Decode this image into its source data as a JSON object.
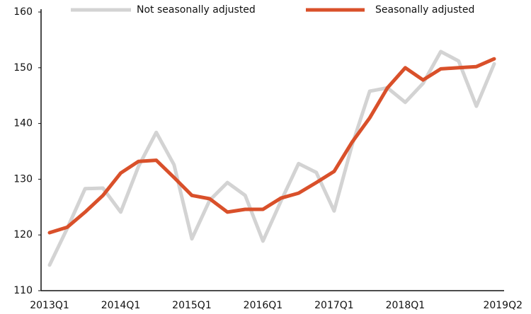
{
  "chart_data": {
    "type": "line",
    "categories": [
      "2013Q1",
      null,
      null,
      null,
      "2014Q1",
      null,
      null,
      null,
      "2015Q1",
      null,
      null,
      null,
      "2016Q1",
      null,
      null,
      null,
      "2017Q1",
      null,
      null,
      null,
      "2018Q1",
      null,
      null,
      null,
      null,
      "2019Q2"
    ],
    "series": [
      {
        "name": "Not seasonally adjusted",
        "color": "#d3d3d3",
        "values": [
          114.6,
          121.2,
          128.3,
          128.4,
          124.1,
          132.3,
          138.4,
          132.6,
          119.3,
          126.2,
          129.4,
          127.1,
          118.9,
          126.0,
          132.8,
          131.2,
          124.3,
          136.0,
          145.8,
          146.4,
          143.8,
          147.2,
          152.9,
          151.2,
          143.1,
          150.7
        ]
      },
      {
        "name": "Seasonally adjusted",
        "color": "#d9502a",
        "values": [
          120.4,
          121.4,
          124.1,
          127.1,
          131.1,
          133.2,
          133.4,
          130.3,
          127.1,
          126.5,
          124.1,
          124.6,
          124.6,
          126.6,
          127.5,
          129.4,
          131.4,
          136.6,
          141.0,
          146.4,
          150.0,
          147.8,
          149.8,
          150.0,
          150.2,
          151.6
        ]
      }
    ],
    "ylim": [
      110,
      160
    ],
    "yticks": [
      110,
      120,
      130,
      140,
      150,
      160
    ],
    "grid": false,
    "legend": "top"
  }
}
